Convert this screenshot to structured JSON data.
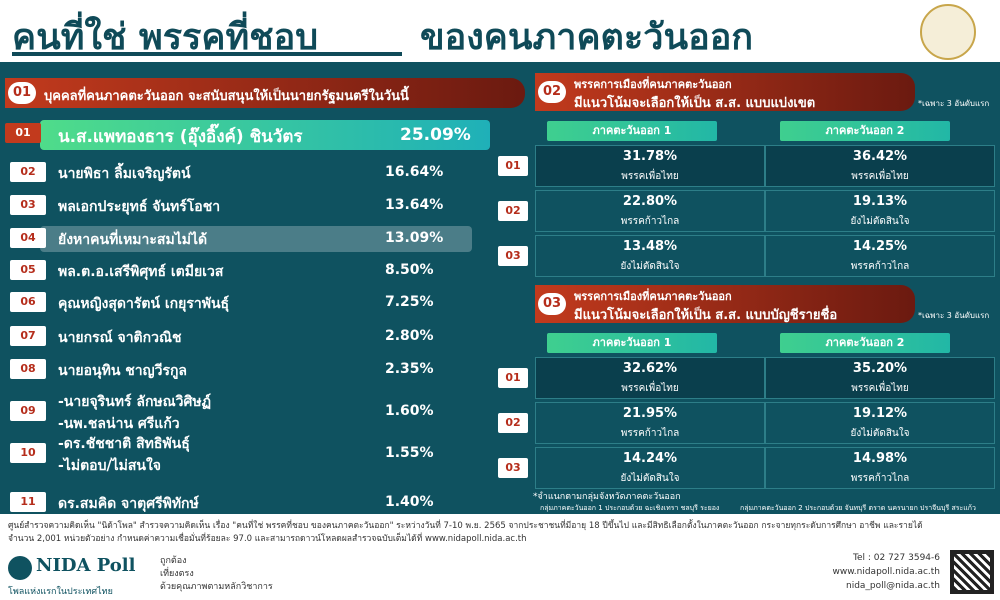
{
  "header": {
    "title_left": "คนที่ใช่ พรรคที่ชอบ",
    "title_right": "ของคนภาคตะวันออก"
  },
  "section1": {
    "number": "01",
    "title": "บุคคลที่คนภาคตะวันออก จะสนับสนุนให้เป็นนายกรัฐมนตรีในวันนี้",
    "rows": [
      {
        "rank": "01",
        "lines": [
          "น.ส.แพทองธาร (อุ๊งอิ๊งค์) ชินวัตร"
        ],
        "value": "25.09%"
      },
      {
        "rank": "02",
        "lines": [
          "นายพิธา ลิ้มเจริญรัตน์"
        ],
        "value": "16.64%"
      },
      {
        "rank": "03",
        "lines": [
          "พลเอกประยุทธ์ จันทร์โอชา"
        ],
        "value": "13.64%"
      },
      {
        "rank": "04",
        "lines": [
          "ยังหาคนที่เหมาะสมไม่ได้"
        ],
        "value": "13.09%"
      },
      {
        "rank": "05",
        "lines": [
          "พล.ต.อ.เสรีพิศุทธ์ เตมียเวส"
        ],
        "value": "8.50%"
      },
      {
        "rank": "06",
        "lines": [
          "คุณหญิงสุดารัตน์ เกยุราพันธุ์"
        ],
        "value": "7.25%"
      },
      {
        "rank": "07",
        "lines": [
          "นายกรณ์ จาติกวณิช"
        ],
        "value": "2.80%"
      },
      {
        "rank": "08",
        "lines": [
          "นายอนุทิน ชาญวีรกูล"
        ],
        "value": "2.35%"
      },
      {
        "rank": "09",
        "lines": [
          "-นายจุรินทร์ ลักษณวิศิษฏ์",
          "-นพ.ชลน่าน ศรีแก้ว"
        ],
        "value": "1.60%"
      },
      {
        "rank": "10",
        "lines": [
          "-ดร.ชัชชาติ สิทธิพันธุ์",
          "-ไม่ตอบ/ไม่สนใจ"
        ],
        "value": "1.55%"
      },
      {
        "rank": "11",
        "lines": [
          "ดร.สมคิด จาตุศรีพิทักษ์"
        ],
        "value": "1.40%"
      }
    ]
  },
  "section2": {
    "number": "02",
    "title_lines": [
      "พรรคการเมืองที่คนภาคตะวันออก",
      "มีแนวโน้มจะเลือกให้เป็น ส.ส. แบบแบ่งเขต"
    ],
    "note": "*เฉพาะ 3 อันดับแรก",
    "columns": [
      "ภาคตะวันออก 1",
      "ภาคตะวันออก 2"
    ],
    "rows": [
      {
        "rank": "01",
        "cells": [
          {
            "value": "31.78%",
            "party": "พรรคเพื่อไทย"
          },
          {
            "value": "36.42%",
            "party": "พรรคเพื่อไทย"
          }
        ]
      },
      {
        "rank": "02",
        "cells": [
          {
            "value": "22.80%",
            "party": "พรรคก้าวไกล"
          },
          {
            "value": "19.13%",
            "party": "ยังไม่ตัดสินใจ"
          }
        ]
      },
      {
        "rank": "03",
        "cells": [
          {
            "value": "13.48%",
            "party": "ยังไม่ตัดสินใจ"
          },
          {
            "value": "14.25%",
            "party": "พรรคก้าวไกล"
          }
        ]
      }
    ]
  },
  "section3": {
    "number": "03",
    "title_lines": [
      "พรรคการเมืองที่คนภาคตะวันออก",
      "มีแนวโน้มจะเลือกให้เป็น ส.ส. แบบบัญชีรายชื่อ"
    ],
    "note": "*เฉพาะ 3 อันดับแรก",
    "columns": [
      "ภาคตะวันออก 1",
      "ภาคตะวันออก 2"
    ],
    "rows": [
      {
        "rank": "01",
        "cells": [
          {
            "value": "32.62%",
            "party": "พรรคเพื่อไทย"
          },
          {
            "value": "35.20%",
            "party": "พรรคเพื่อไทย"
          }
        ]
      },
      {
        "rank": "02",
        "cells": [
          {
            "value": "21.95%",
            "party": "พรรคก้าวไกล"
          },
          {
            "value": "19.12%",
            "party": "ยังไม่ตัดสินใจ"
          }
        ]
      },
      {
        "rank": "03",
        "cells": [
          {
            "value": "14.24%",
            "party": "ยังไม่ตัดสินใจ"
          },
          {
            "value": "14.98%",
            "party": "พรรคก้าวไกล"
          }
        ]
      }
    ]
  },
  "footnote": "*จำแนกตามกลุ่มจังหวัดภาคตะวันออก",
  "legends": [
    "กลุ่มภาคตะวันออก 1 ประกอบด้วย ฉะเชิงเทรา ชลบุรี ระยอง",
    "กลุ่มภาคตะวันออก 2 ประกอบด้วย จันทบุรี ตราด นครนายก ปราจีนบุรี สระแก้ว"
  ],
  "footer": {
    "source_lines": [
      "ศูนย์สำรวจความคิดเห็น \"นิด้าโพล\" สำรวจความคิดเห็น เรื่อง \"คนที่ใช่ พรรคที่ชอบ ของคนภาคตะวันออก\" ระหว่างวันที่ 7-10 พ.ย. 2565 จากประชาชนที่มีอายุ 18 ปีขึ้นไป และมีสิทธิเลือกตั้งในภาคตะวันออก กระจายทุกระดับการศึกษา อาชีพ และรายได้",
      "จำนวน 2,001 หน่วยตัวอย่าง กำหนดค่าความเชื่อมั่นที่ร้อยละ 97.0 และสามารถดาวน์โหลดผลสำรวจฉบับเต็มได้ที่ www.nidapoll.nida.ac.th"
    ],
    "logo": "NIDA Poll",
    "tagline": "โพลแห่งแรกในประเทศไทย",
    "mottos": [
      "ถูกต้อง",
      "เที่ยงตรง",
      "ด้วยคุณภาพตามหลักวิชาการ"
    ],
    "contacts": [
      "Tel : 02 727 3594-6",
      "www.nidapoll.nida.ac.th",
      "nida_poll@nida.ac.th"
    ]
  }
}
